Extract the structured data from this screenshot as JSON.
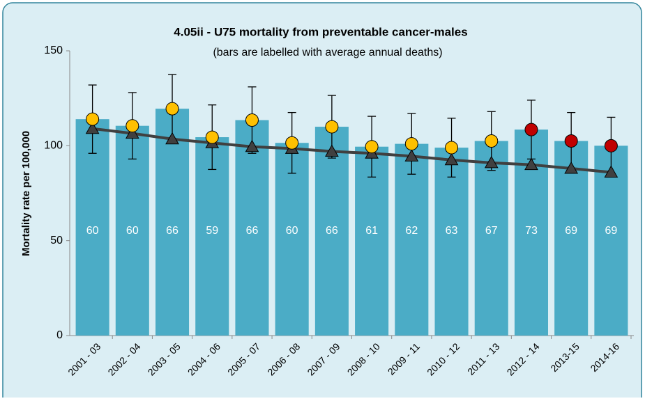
{
  "chart_data": {
    "type": "bar",
    "title": "4.05ii - U75 mortality from preventable cancer-males",
    "subtitle": "(bars are labelled with average annual deaths)",
    "y_label": "Mortality rate per 100,000",
    "categories": [
      "2001 - 03",
      "2002 - 04",
      "2003 - 05",
      "2004 - 06",
      "2005 - 07",
      "2006 - 08",
      "2007 - 09",
      "2008 - 10",
      "2009 - 11",
      "2010 - 12",
      "2011 - 13",
      "2012 - 14",
      "2013-15",
      "2014-16"
    ],
    "values": [
      114,
      110.5,
      119.5,
      104.5,
      113.5,
      101.5,
      110,
      99.5,
      101,
      99,
      102.5,
      108.5,
      102.5,
      100
    ],
    "errors": [
      18,
      17.5,
      18,
      17,
      17.5,
      16,
      16.5,
      16,
      16,
      15.5,
      15.5,
      15.5,
      15,
      15
    ],
    "deaths": [
      60,
      60,
      66,
      59,
      66,
      60,
      66,
      61,
      62,
      63,
      67,
      73,
      69,
      69
    ],
    "trend": [
      109,
      106.5,
      103.5,
      101.5,
      99.5,
      98.5,
      97,
      96,
      94.5,
      92.5,
      91,
      90,
      88,
      86
    ],
    "color": "#4bacc6",
    "point_colors": [
      "#ffc000",
      "#ffc000",
      "#ffc000",
      "#ffc000",
      "#ffc000",
      "#ffc000",
      "#ffc000",
      "#ffc000",
      "#ffc000",
      "#ffc000",
      "#ffc000",
      "#c00000",
      "#c00000",
      "#c00000"
    ],
    "trend_color": "#404040",
    "ylim": [
      0,
      150
    ],
    "yticks": [
      0,
      50,
      100,
      150
    ]
  }
}
